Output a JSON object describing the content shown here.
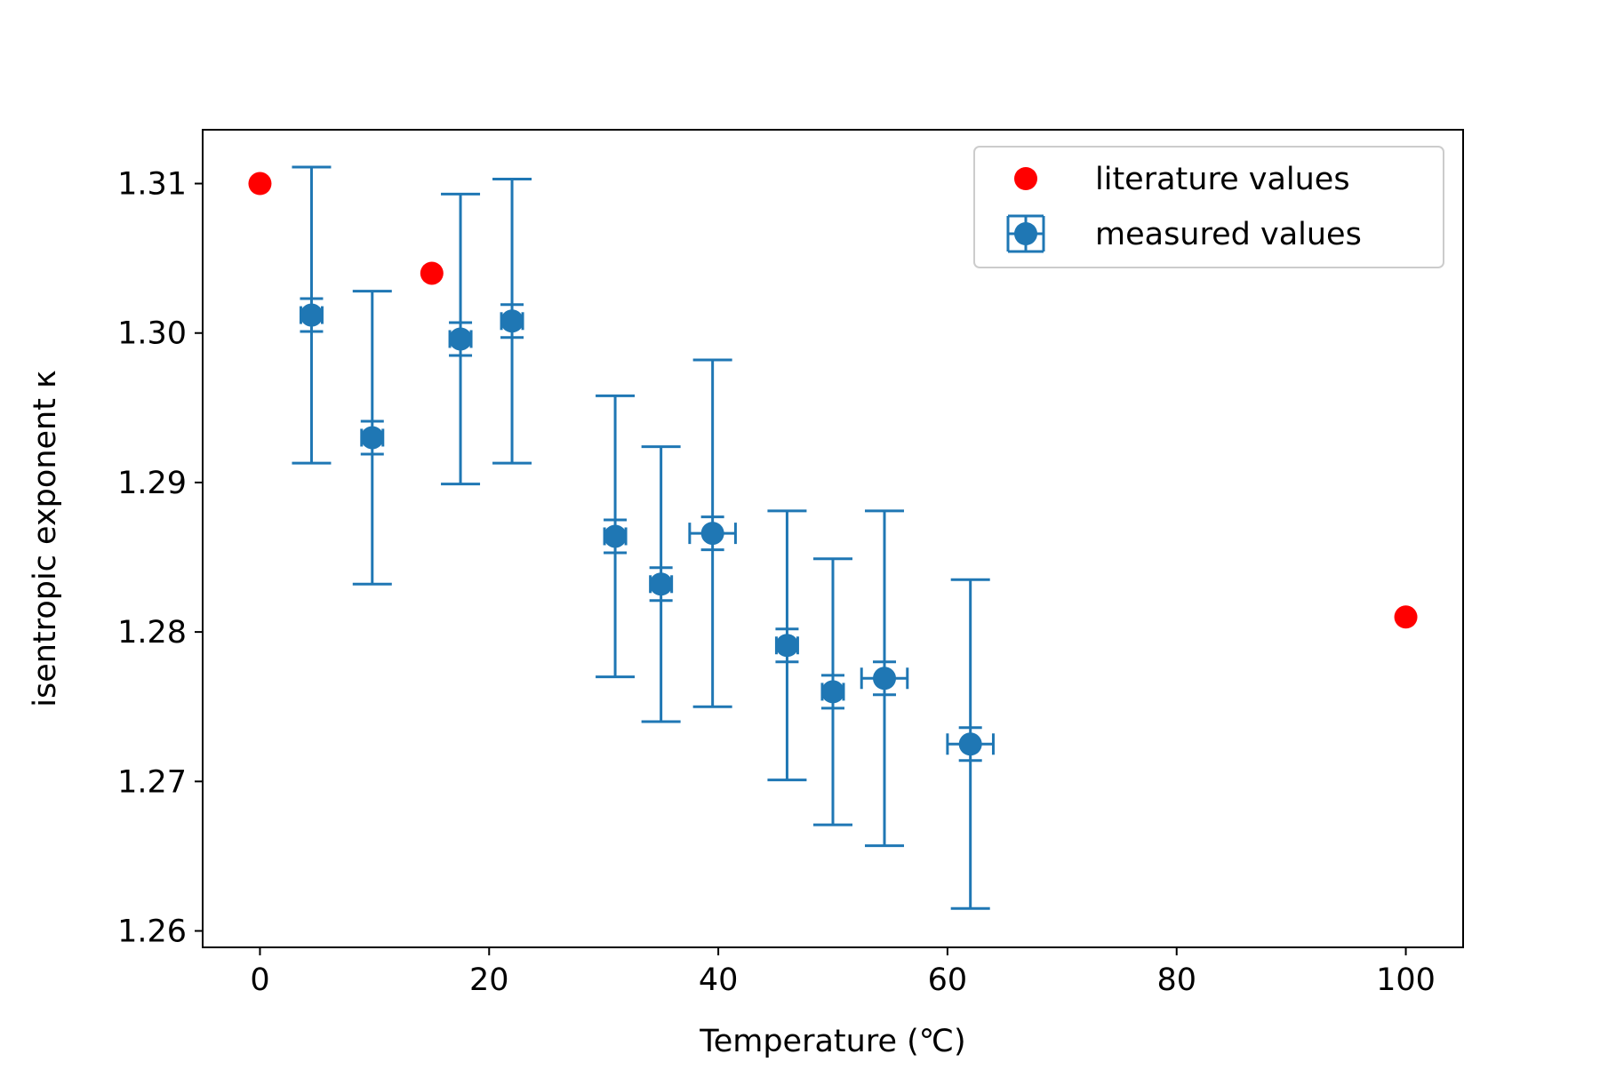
{
  "chart_data": {
    "type": "scatter",
    "title": "",
    "xlabel": "Temperature (℃)",
    "ylabel": "isentropic exponent κ",
    "xlim": [
      -5,
      105
    ],
    "ylim": [
      1.2589,
      1.3136
    ],
    "x_ticks": [
      {
        "value": 0,
        "label": "0"
      },
      {
        "value": 20,
        "label": "20"
      },
      {
        "value": 40,
        "label": "40"
      },
      {
        "value": 60,
        "label": "60"
      },
      {
        "value": 80,
        "label": "80"
      },
      {
        "value": 100,
        "label": "100"
      }
    ],
    "y_ticks": [
      {
        "value": 1.26,
        "label": "1.26"
      },
      {
        "value": 1.27,
        "label": "1.27"
      },
      {
        "value": 1.28,
        "label": "1.28"
      },
      {
        "value": 1.29,
        "label": "1.29"
      },
      {
        "value": 1.3,
        "label": "1.30"
      },
      {
        "value": 1.31,
        "label": "1.31"
      }
    ],
    "grid": false,
    "legend_position": "top-right",
    "series": [
      {
        "name": "literature values",
        "kind": "scatter",
        "color": "#ff0000",
        "points": [
          {
            "x": 0,
            "y": 1.31
          },
          {
            "x": 15,
            "y": 1.304
          },
          {
            "x": 100,
            "y": 1.281
          }
        ]
      },
      {
        "name": "measured values",
        "kind": "errorbar",
        "color": "#1f77b4",
        "points": [
          {
            "x": 4.5,
            "y": 1.3012,
            "xerr": 0.0,
            "yerr_small": 0.0011,
            "yerr_large": 0.0099
          },
          {
            "x": 9.8,
            "y": 1.293,
            "xerr": 0.0,
            "yerr_small": 0.0011,
            "yerr_large": 0.0098
          },
          {
            "x": 17.5,
            "y": 1.2996,
            "xerr": 0.0,
            "yerr_small": 0.0011,
            "yerr_large": 0.0097
          },
          {
            "x": 22.0,
            "y": 1.3008,
            "xerr": 0.0,
            "yerr_small": 0.0011,
            "yerr_large": 0.0095
          },
          {
            "x": 31.0,
            "y": 1.2864,
            "xerr": 0.0,
            "yerr_small": 0.0011,
            "yerr_large": 0.0094
          },
          {
            "x": 35.0,
            "y": 1.2832,
            "xerr": 0.0,
            "yerr_small": 0.0011,
            "yerr_large": 0.0092
          },
          {
            "x": 39.5,
            "y": 1.2866,
            "xerr": 2.0,
            "yerr_small": 0.0011,
            "yerr_large": 0.0116
          },
          {
            "x": 46.0,
            "y": 1.2791,
            "xerr": 0.0,
            "yerr_small": 0.0011,
            "yerr_large": 0.009
          },
          {
            "x": 50.0,
            "y": 1.276,
            "xerr": 0.0,
            "yerr_small": 0.0011,
            "yerr_large": 0.0089
          },
          {
            "x": 54.5,
            "y": 1.2769,
            "xerr": 2.0,
            "yerr_small": 0.0011,
            "yerr_large": 0.0112
          },
          {
            "x": 62.0,
            "y": 1.2725,
            "xerr": 2.0,
            "yerr_small": 0.0011,
            "yerr_large": 0.011
          }
        ]
      }
    ]
  }
}
